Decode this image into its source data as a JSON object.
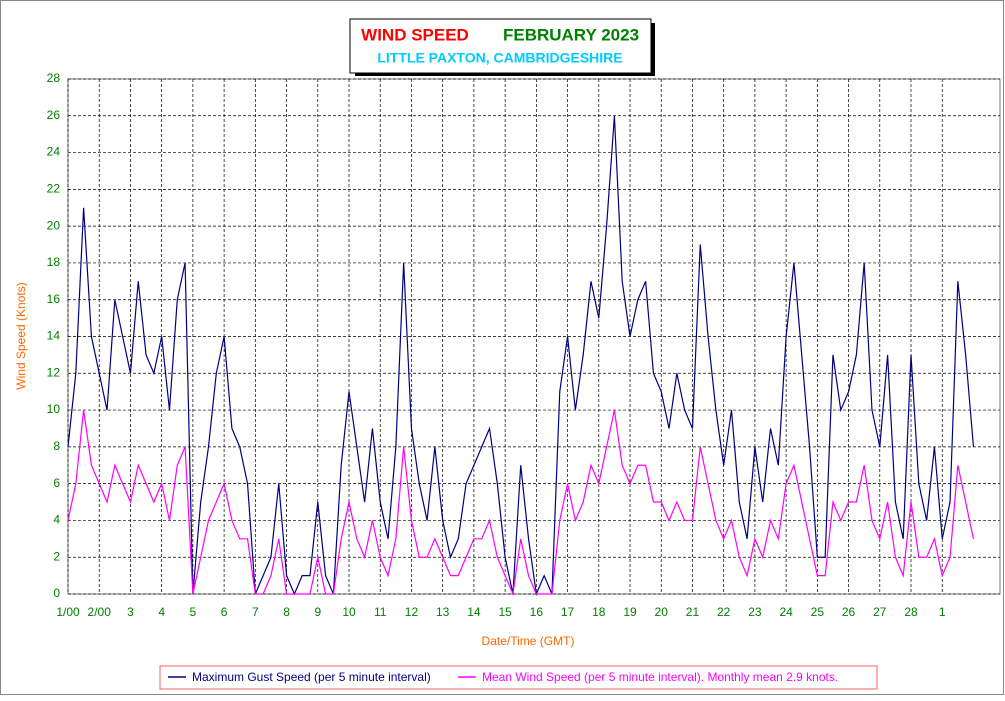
{
  "chart_data": {
    "type": "line",
    "title": "WIND SPEED",
    "title_period": "FEBRUARY 2023",
    "subtitle": "LITTLE PAXTON, CAMBRIDGESHIRE",
    "x_label": "Date/Time (GMT)",
    "y_label": "Wind Speed (Knots)",
    "x": [
      0,
      0.25,
      0.5,
      0.75,
      1,
      1.25,
      1.5,
      1.75,
      2,
      2.25,
      2.5,
      2.75,
      3,
      3.25,
      3.5,
      3.75,
      4,
      4.25,
      4.5,
      4.75,
      5,
      5.25,
      5.5,
      5.75,
      6,
      6.25,
      6.5,
      6.75,
      7,
      7.25,
      7.5,
      7.75,
      8,
      8.25,
      8.5,
      8.75,
      9,
      9.25,
      9.5,
      9.75,
      10,
      10.25,
      10.5,
      10.75,
      11,
      11.25,
      11.5,
      11.75,
      12,
      12.25,
      12.5,
      12.75,
      13,
      13.25,
      13.5,
      13.75,
      14,
      14.25,
      14.5,
      14.75,
      15,
      15.25,
      15.5,
      15.75,
      16,
      16.25,
      16.5,
      16.75,
      17,
      17.25,
      17.5,
      17.75,
      18,
      18.25,
      18.5,
      18.75,
      19,
      19.25,
      19.5,
      19.75,
      20,
      20.25,
      20.5,
      20.75,
      21,
      21.25,
      21.5,
      21.75,
      22,
      22.25,
      22.5,
      22.75,
      23,
      23.25,
      23.5,
      23.75,
      24,
      24.25,
      24.5,
      24.75,
      25,
      25.25,
      25.5,
      25.75,
      26,
      26.25,
      26.5,
      26.75,
      27,
      27.25,
      27.5,
      27.75,
      28,
      28.25,
      28.5,
      28.75,
      29
    ],
    "series": [
      {
        "name": "Maximum Gust Speed (per 5 minute interval)",
        "color": "#000080",
        "values": [
          8,
          12,
          21,
          14,
          12,
          10,
          16,
          14,
          12,
          17,
          13,
          12,
          14,
          10,
          16,
          18,
          0,
          5,
          8,
          12,
          14,
          9,
          8,
          6,
          0,
          1,
          2,
          6,
          1,
          0,
          1,
          1,
          5,
          1,
          0,
          7,
          11,
          8,
          5,
          9,
          5,
          3,
          8,
          18,
          9,
          6,
          4,
          8,
          4,
          2,
          3,
          6,
          7,
          8,
          9,
          6,
          2,
          0,
          7,
          3,
          0,
          1,
          0,
          11,
          14,
          10,
          13,
          17,
          15,
          20,
          26,
          17,
          14,
          16,
          17,
          12,
          11,
          9,
          12,
          10,
          9,
          19,
          14,
          10,
          7,
          10,
          5,
          3,
          8,
          5,
          9,
          7,
          14,
          18,
          13,
          8,
          2,
          2,
          13,
          10,
          11,
          13,
          18,
          10,
          8,
          13,
          5,
          3,
          13,
          6,
          4,
          8,
          3,
          5,
          17,
          13,
          8
        ]
      },
      {
        "name": "Mean Wind Speed (per 5 minute interval). Monthly mean 2.9 knots.",
        "color": "#ff00ff",
        "values": [
          4,
          6,
          10,
          7,
          6,
          5,
          7,
          6,
          5,
          7,
          6,
          5,
          6,
          4,
          7,
          8,
          0,
          2,
          4,
          5,
          6,
          4,
          3,
          3,
          0,
          0,
          1,
          3,
          0,
          0,
          0,
          0,
          2,
          0,
          0,
          3,
          5,
          3,
          2,
          4,
          2,
          1,
          3,
          8,
          4,
          2,
          2,
          3,
          2,
          1,
          1,
          2,
          3,
          3,
          4,
          2,
          1,
          0,
          3,
          1,
          0,
          0,
          0,
          4,
          6,
          4,
          5,
          7,
          6,
          8,
          10,
          7,
          6,
          7,
          7,
          5,
          5,
          4,
          5,
          4,
          4,
          8,
          6,
          4,
          3,
          4,
          2,
          1,
          3,
          2,
          4,
          3,
          6,
          7,
          5,
          3,
          1,
          1,
          5,
          4,
          5,
          5,
          7,
          4,
          3,
          5,
          2,
          1,
          5,
          2,
          2,
          3,
          1,
          2,
          7,
          5,
          3
        ]
      }
    ],
    "xlim": [
      0,
      29.85
    ],
    "xticks": [
      {
        "value": 0,
        "label": "1/00"
      },
      {
        "value": 1,
        "label": "2/00"
      },
      {
        "value": 2,
        "label": "3"
      },
      {
        "value": 3,
        "label": "4"
      },
      {
        "value": 4,
        "label": "5"
      },
      {
        "value": 5,
        "label": "6"
      },
      {
        "value": 6,
        "label": "7"
      },
      {
        "value": 7,
        "label": "8"
      },
      {
        "value": 8,
        "label": "9"
      },
      {
        "value": 9,
        "label": "10"
      },
      {
        "value": 10,
        "label": "11"
      },
      {
        "value": 11,
        "label": "12"
      },
      {
        "value": 12,
        "label": "13"
      },
      {
        "value": 13,
        "label": "14"
      },
      {
        "value": 14,
        "label": "15"
      },
      {
        "value": 15,
        "label": "16"
      },
      {
        "value": 16,
        "label": "17"
      },
      {
        "value": 17,
        "label": "18"
      },
      {
        "value": 18,
        "label": "19"
      },
      {
        "value": 19,
        "label": "20"
      },
      {
        "value": 20,
        "label": "21"
      },
      {
        "value": 21,
        "label": "22"
      },
      {
        "value": 22,
        "label": "23"
      },
      {
        "value": 23,
        "label": "24"
      },
      {
        "value": 24,
        "label": "25"
      },
      {
        "value": 25,
        "label": "26"
      },
      {
        "value": 26,
        "label": "27"
      },
      {
        "value": 27,
        "label": "28"
      },
      {
        "value": 28,
        "label": "1"
      }
    ],
    "ylim": [
      0,
      28
    ],
    "yticks": [
      0,
      2,
      4,
      6,
      8,
      10,
      12,
      14,
      16,
      18,
      20,
      22,
      24,
      26,
      28
    ],
    "grid": true
  }
}
